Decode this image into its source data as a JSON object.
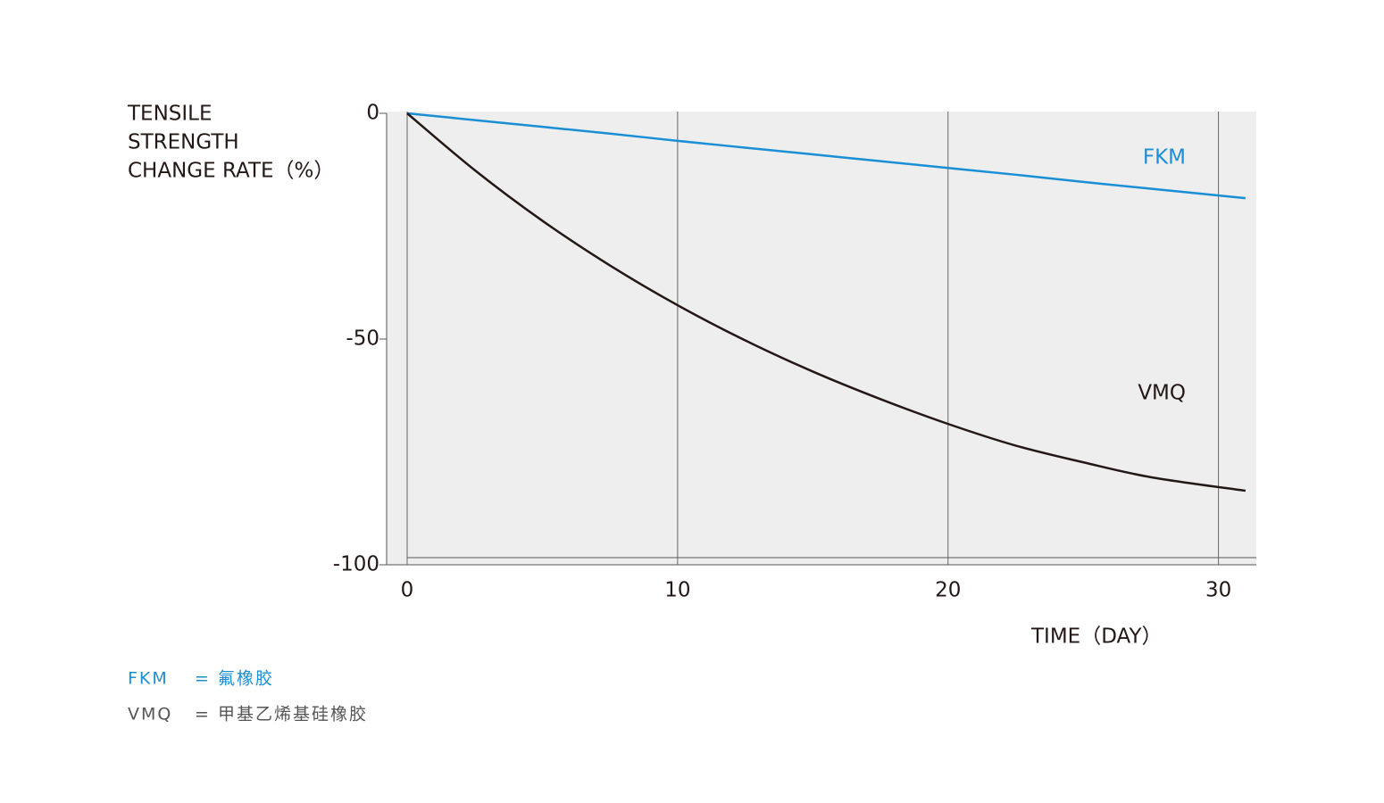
{
  "chart_data": {
    "type": "line",
    "y_label": [
      "TENSILE",
      "STRENGTH",
      "CHANGE RATE（%）"
    ],
    "x_label": "TIME（DAY）",
    "x": [
      0,
      2.5,
      5,
      7.5,
      10,
      12.5,
      15,
      17.5,
      20,
      22.5,
      25,
      27.5,
      31
    ],
    "series": [
      {
        "name": "FKM",
        "color": "#1a8fd6",
        "values": [
          0,
          -1.5,
          -3,
          -4.5,
          -6.1,
          -7.6,
          -9.1,
          -10.6,
          -12.1,
          -13.6,
          -15.2,
          -16.7,
          -18.8
        ]
      },
      {
        "name": "VMQ",
        "color": "#231815",
        "values": [
          0,
          -12.6,
          -23.8,
          -33.7,
          -42.5,
          -50.3,
          -57.2,
          -63.3,
          -68.8,
          -73.6,
          -77.3,
          -80.6,
          -83.6
        ]
      }
    ],
    "xlim": [
      0,
      31.4
    ],
    "ylim": [
      -100,
      0
    ],
    "xticks": [
      0,
      10,
      20,
      30
    ],
    "yticks": [
      0,
      -50,
      -100
    ],
    "grid": true
  },
  "notes": [
    {
      "abbr": "FKM",
      "desc": "= 氟橡胶",
      "color": "#1a8fd6"
    },
    {
      "abbr": "VMQ",
      "desc": "= 甲基乙烯基硅橡胶",
      "color": "#555555"
    }
  ]
}
